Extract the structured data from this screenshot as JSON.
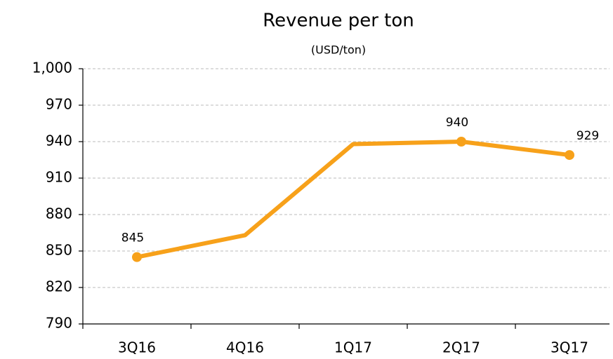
{
  "chart_data": {
    "type": "line",
    "title": "Revenue per ton",
    "subtitle": "(USD/ton)",
    "categories": [
      "3Q16",
      "4Q16",
      "1Q17",
      "2Q17",
      "3Q17"
    ],
    "series": [
      {
        "name": "Revenue per ton",
        "color": "#f7a11a",
        "values": [
          845,
          863,
          938,
          940,
          929
        ]
      }
    ],
    "value_labels": [
      845,
      null,
      null,
      940,
      929
    ],
    "ylim": [
      790,
      1000
    ],
    "yticks": [
      790,
      820,
      850,
      880,
      910,
      940,
      970,
      {
        "value": 1000,
        "label": "1,000"
      }
    ],
    "grid": true
  }
}
